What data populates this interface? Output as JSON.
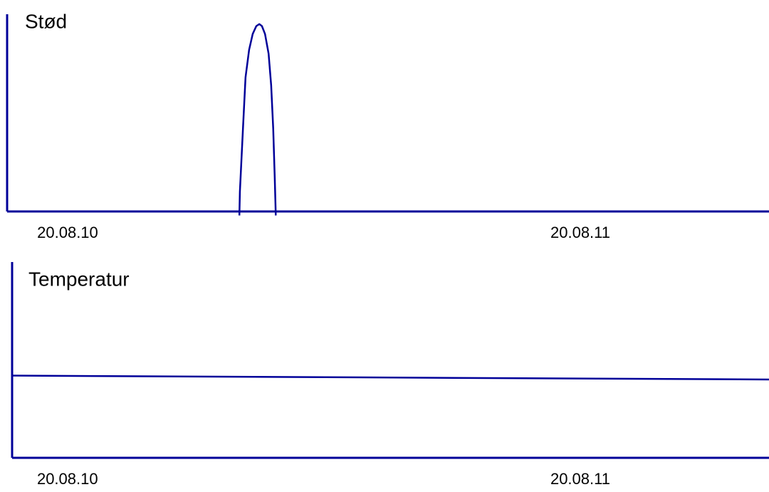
{
  "chart_data": [
    {
      "type": "line",
      "title": "Stød",
      "color": "#000099",
      "x": [
        0.335,
        0.336,
        0.342,
        0.347,
        0.354,
        0.361,
        0.368,
        0.374,
        0.379,
        0.385,
        0.392,
        0.397,
        0.401,
        0.404,
        0.406
      ],
      "values": [
        -0.02,
        0.1,
        0.42,
        0.68,
        0.82,
        0.9,
        0.94,
        0.95,
        0.94,
        0.9,
        0.8,
        0.64,
        0.42,
        0.17,
        -0.02
      ],
      "xlim": [
        -0.118,
        1.368
      ],
      "ylim": [
        0,
        1
      ],
      "xticks": [
        {
          "value": 0,
          "label": "20.08.10"
        },
        {
          "value": 1,
          "label": "20.08.11"
        }
      ]
    },
    {
      "type": "line",
      "title": "Temperatur",
      "color": "#000099",
      "x": [
        -0.108,
        1.368
      ],
      "values": [
        0.42,
        0.4
      ],
      "xlim": [
        -0.108,
        1.368
      ],
      "ylim": [
        0,
        1
      ],
      "xticks": [
        {
          "value": 0,
          "label": "20.08.10"
        },
        {
          "value": 1,
          "label": "20.08.11"
        }
      ]
    }
  ]
}
